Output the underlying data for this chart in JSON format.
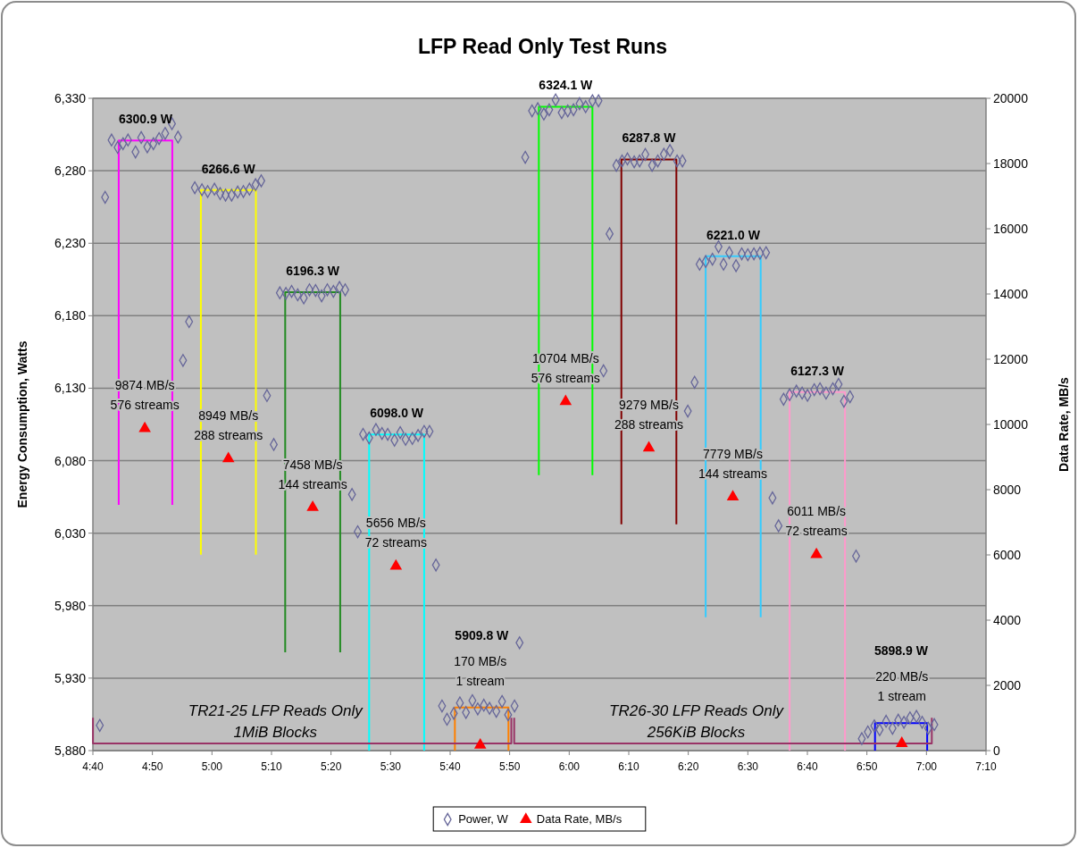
{
  "chart_data": {
    "type": "scatter",
    "title": "LFP Read Only Test Runs",
    "ylabel": "Energy Consumption, Watts",
    "y2label": "Data Rate, MB/s",
    "xlim": [
      4.6667,
      7.1667
    ],
    "xticks": [
      {
        "value": 4.6667,
        "label": "4:40"
      },
      {
        "value": 4.8333,
        "label": "4:50"
      },
      {
        "value": 5,
        "label": "5:00"
      },
      {
        "value": 5.1667,
        "label": "5:10"
      },
      {
        "value": 5.3333,
        "label": "5:20"
      },
      {
        "value": 5.5,
        "label": "5:30"
      },
      {
        "value": 5.6667,
        "label": "5:40"
      },
      {
        "value": 5.8333,
        "label": "5:50"
      },
      {
        "value": 6,
        "label": "6:00"
      },
      {
        "value": 6.1667,
        "label": "6:10"
      },
      {
        "value": 6.3333,
        "label": "6:20"
      },
      {
        "value": 6.5,
        "label": "6:30"
      },
      {
        "value": 6.6667,
        "label": "6:40"
      },
      {
        "value": 6.8333,
        "label": "6:50"
      },
      {
        "value": 7,
        "label": "7:00"
      },
      {
        "value": 7.1667,
        "label": "7:10"
      }
    ],
    "ylim": [
      5880,
      6330
    ],
    "yticks": [
      {
        "value": 5880,
        "label": "5,880"
      },
      {
        "value": 5930,
        "label": "5,930"
      },
      {
        "value": 5980,
        "label": "5,980"
      },
      {
        "value": 6030,
        "label": "6,030"
      },
      {
        "value": 6080,
        "label": "6,080"
      },
      {
        "value": 6130,
        "label": "6,130"
      },
      {
        "value": 6180,
        "label": "6,180"
      },
      {
        "value": 6230,
        "label": "6,230"
      },
      {
        "value": 6280,
        "label": "6,280"
      },
      {
        "value": 6330,
        "label": "6,330"
      }
    ],
    "y2lim": [
      0,
      20000
    ],
    "y2ticks": [
      0,
      2000,
      4000,
      6000,
      8000,
      10000,
      12000,
      14000,
      16000,
      18000,
      20000
    ],
    "grid": "y",
    "legend": "bottom",
    "marker": "diamond",
    "series": [
      {
        "name": "Power, W",
        "color": "#666699",
        "x": [
          4.686,
          4.701,
          4.719,
          4.736,
          4.751,
          4.765,
          4.786,
          4.802,
          4.819,
          4.836,
          4.852,
          4.869,
          4.888,
          4.905,
          4.919,
          4.936,
          4.952,
          4.972,
          4.988,
          5.007,
          5.023,
          5.038,
          5.055,
          5.072,
          5.088,
          5.105,
          5.122,
          5.138,
          5.154,
          5.173,
          5.19,
          5.207,
          5.223,
          5.24,
          5.257,
          5.273,
          5.29,
          5.307,
          5.323,
          5.34,
          5.357,
          5.373,
          5.392,
          5.408,
          5.423,
          5.44,
          5.459,
          5.476,
          5.492,
          5.511,
          5.527,
          5.542,
          5.561,
          5.577,
          5.594,
          5.609,
          5.627,
          5.644,
          5.658,
          5.677,
          5.694,
          5.711,
          5.729,
          5.744,
          5.761,
          5.777,
          5.796,
          5.812,
          5.829,
          5.847,
          5.861,
          5.877,
          5.896,
          5.912,
          5.929,
          5.944,
          5.962,
          5.979,
          5.996,
          6.012,
          6.029,
          6.046,
          6.065,
          6.082,
          6.096,
          6.113,
          6.132,
          6.148,
          6.163,
          6.182,
          6.197,
          6.213,
          6.232,
          6.248,
          6.265,
          6.282,
          6.302,
          6.317,
          6.332,
          6.351,
          6.365,
          6.382,
          6.401,
          6.418,
          6.432,
          6.448,
          6.467,
          6.483,
          6.5,
          6.517,
          6.534,
          6.551,
          6.569,
          6.586,
          6.6,
          6.617,
          6.636,
          6.652,
          6.667,
          6.686,
          6.702,
          6.719,
          6.738,
          6.754,
          6.769,
          6.786,
          6.803,
          6.819,
          6.836,
          6.854,
          6.869,
          6.887,
          6.905,
          6.921,
          6.937,
          6.954,
          6.972,
          6.988,
          7.005,
          7.022
        ],
        "values": [
          5897.4,
          6261.7,
          6301.2,
          6296.1,
          6298.7,
          6301.2,
          6293.0,
          6302.9,
          6296.5,
          6298.7,
          6302.2,
          6305.8,
          6312.5,
          6303.2,
          6149.2,
          6175.9,
          6268.3,
          6266.9,
          6265.7,
          6267.3,
          6264.2,
          6263.2,
          6263.2,
          6265.3,
          6265.7,
          6267.3,
          6270.4,
          6273.1,
          6124.9,
          6091.2,
          6195.8,
          6195.4,
          6196.8,
          6194.4,
          6192.3,
          6197.9,
          6197.4,
          6193.7,
          6197.9,
          6196.8,
          6199.5,
          6197.9,
          6056.7,
          6031.0,
          6098.2,
          6095.7,
          6101.5,
          6098.8,
          6098.2,
          6094.1,
          6099.4,
          6094.7,
          6095.3,
          6097.4,
          6100.2,
          6100.2,
          6008.0,
          5910.8,
          5901.6,
          5905.7,
          5912.9,
          5906.3,
          5914.5,
          5908.8,
          5911.3,
          5909.2,
          5907.1,
          5913.9,
          5904.7,
          5910.8,
          5954.4,
          6289.3,
          6321.3,
          6322.8,
          6319.1,
          6322.1,
          6328.9,
          6320.1,
          6321.3,
          6322.1,
          6326.3,
          6324.2,
          6328.3,
          6328.3,
          6142.0,
          6236.5,
          6283.7,
          6286.8,
          6288.2,
          6286.2,
          6286.8,
          6291.3,
          6283.7,
          6286.8,
          6291.4,
          6294.0,
          6286.8,
          6286.8,
          6114.2,
          6134.1,
          6215.5,
          6217.4,
          6219.0,
          6227.6,
          6215.5,
          6223.5,
          6214.5,
          6222.7,
          6222.1,
          6222.7,
          6223.2,
          6223.5,
          6054.3,
          6035.1,
          6122.4,
          6125.5,
          6128.0,
          6126.6,
          6125.1,
          6129.0,
          6129.6,
          6126.6,
          6129.6,
          6132.7,
          6121.0,
          6124.1,
          6014.2,
          5888.2,
          5892.9,
          5897.1,
          5894.4,
          5900.2,
          5895.4,
          5901.0,
          5899.5,
          5902.6,
          5903.6,
          5899.5,
          5895.4,
          5897.9
        ]
      },
      {
        "name": "Data Rate, MB/s",
        "color": "#ff0000",
        "marker": "triangle",
        "axis": "y2",
        "x": [
          4.812,
          5.046,
          5.282,
          5.515,
          5.751,
          5.99,
          6.223,
          6.458,
          6.692,
          6.931
        ],
        "values": [
          9874,
          8949,
          7458,
          5656,
          170,
          10704,
          9279,
          7779,
          6011,
          220
        ]
      },
      {
        "type": "line",
        "marker": "none",
        "color": "#ff00ff",
        "x": [
          4.739,
          4.739,
          4.889,
          4.889
        ],
        "values": [
          6049.5,
          6300.9,
          6300.9,
          6049.5
        ]
      },
      {
        "type": "line",
        "marker": "none",
        "color": "#ffff00",
        "x": [
          4.969,
          4.969,
          5.123,
          5.123
        ],
        "values": [
          6015.2,
          6266.6,
          6266.6,
          6015.2
        ]
      },
      {
        "type": "line",
        "marker": "none",
        "color": "#228b22",
        "x": [
          5.205,
          5.205,
          5.359,
          5.359
        ],
        "values": [
          5947.8,
          6196.3,
          6196.3,
          5947.8
        ]
      },
      {
        "type": "line",
        "marker": "none",
        "color": "#00ffff",
        "x": [
          5.44,
          5.44,
          5.594,
          5.594
        ],
        "values": [
          5880,
          6098.0,
          6098.0,
          5880
        ]
      },
      {
        "type": "line",
        "marker": "none",
        "color": "#ff8000",
        "x": [
          5.68,
          5.68,
          5.83,
          5.83
        ],
        "values": [
          5880,
          5909.8,
          5909.8,
          5880
        ]
      },
      {
        "type": "line",
        "marker": "none",
        "color": "#00ff00",
        "x": [
          5.915,
          5.915,
          6.065,
          6.065
        ],
        "values": [
          6070.0,
          6324.1,
          6324.1,
          6070.0
        ]
      },
      {
        "type": "line",
        "marker": "none",
        "color": "#800000",
        "x": [
          6.146,
          6.146,
          6.3,
          6.3
        ],
        "values": [
          6036.1,
          6287.8,
          6287.8,
          6036.1
        ]
      },
      {
        "type": "line",
        "marker": "none",
        "color": "#33ccff",
        "x": [
          6.382,
          6.382,
          6.536,
          6.536
        ],
        "values": [
          5972.0,
          6221.0,
          6221.0,
          5972.0
        ]
      },
      {
        "type": "line",
        "marker": "none",
        "color": "#ff99cc",
        "x": [
          6.617,
          6.617,
          6.772,
          6.772
        ],
        "values": [
          5880,
          6127.3,
          6127.3,
          5880
        ]
      },
      {
        "type": "line",
        "marker": "none",
        "color": "#0000ff",
        "x": [
          6.856,
          6.856,
          7.002,
          7.002
        ],
        "values": [
          5880,
          5898.9,
          5898.9,
          5880
        ]
      },
      {
        "type": "line",
        "marker": "none",
        "color": "#993366",
        "x": [
          4.667,
          4.667,
          5.838,
          5.838
        ],
        "values": [
          5902.6,
          5884.9,
          5884.9,
          5902.6
        ]
      },
      {
        "type": "line",
        "marker": "none",
        "color": "#993366",
        "x": [
          5.846,
          5.846,
          7.015,
          7.015
        ],
        "values": [
          5902.6,
          5884.9,
          5884.9,
          5902.6
        ]
      }
    ],
    "annotations": [
      "6300.9 W",
      "6266.6 W",
      "6196.3 W",
      "6098.0 W",
      "5909.8 W",
      "6324.1 W",
      "6287.8 W",
      "6221.0 W",
      "6127.3 W",
      "5898.9 W",
      "9874 MB/s",
      "576 streams",
      "8949 MB/s",
      "288 streams",
      "7458 MB/s",
      "144 streams",
      "5656 MB/s",
      "72 streams",
      "170 MB/s",
      "1 stream",
      "10704 MB/s",
      "576 streams",
      "9279 MB/s",
      "288 streams",
      "7779 MB/s",
      "144 streams",
      "6011 MB/s",
      "72 streams",
      "220 MB/s",
      "1 stream",
      "TR21-25 LFP Reads Only",
      "1MiB Blocks",
      "TR26-30 LFP Reads Only",
      "256KiB Blocks"
    ]
  }
}
